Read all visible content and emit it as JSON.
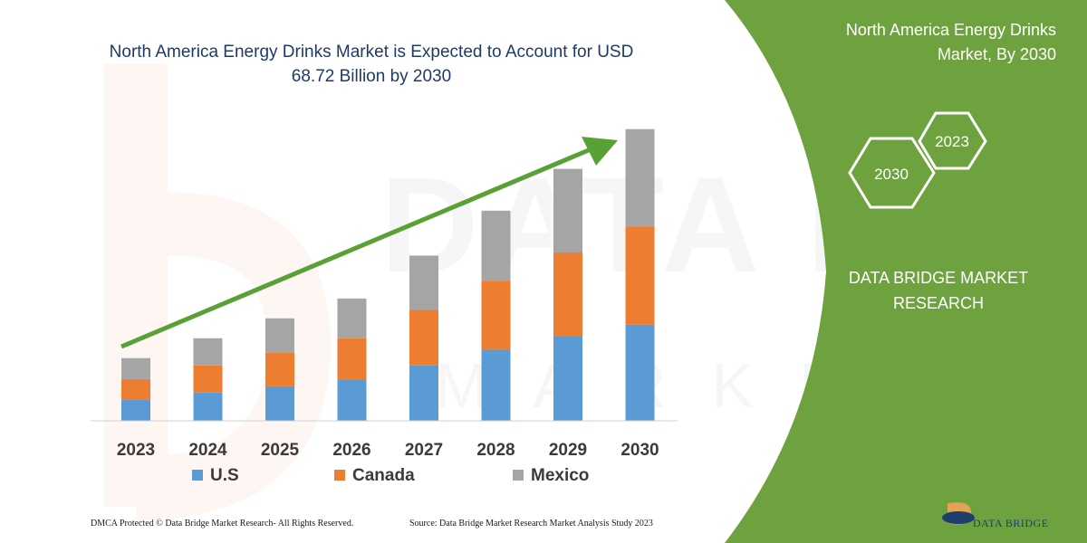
{
  "chart_data": {
    "type": "bar",
    "stacked": true,
    "title": "North America Energy Drinks Market is Expected to Account for USD 68.72 Billion by 2030",
    "categories": [
      "2023",
      "2024",
      "2025",
      "2026",
      "2027",
      "2028",
      "2029",
      "2030"
    ],
    "series": [
      {
        "name": "U.S",
        "color": "#5b9bd5",
        "values": [
          20,
          27,
          33,
          39,
          53,
          68,
          81,
          92
        ]
      },
      {
        "name": "Canada",
        "color": "#ed7d31",
        "values": [
          20,
          26,
          32,
          40,
          53,
          66,
          80,
          94
        ]
      },
      {
        "name": "Mexico",
        "color": "#a5a5a5",
        "values": [
          20,
          26,
          33,
          38,
          52,
          67,
          80,
          93
        ]
      }
    ],
    "ylim": [
      0,
      290
    ],
    "grid": false,
    "legend_position": "bottom",
    "trend_arrow": {
      "color": "#5aa135",
      "direction": "up-right"
    }
  },
  "panel": {
    "title": "North America Energy Drinks Market, By 2030",
    "hexagons": [
      "2030",
      "2023"
    ],
    "brand": "DATA BRIDGE MARKET RESEARCH",
    "accent_color": "#6ea23e"
  },
  "footer": {
    "dmca": "DMCA Protected © Data Bridge Market Research- All Rights Reserved.",
    "source": "Source: Data Bridge Market Research Market Analysis Study 2023"
  },
  "logo": {
    "text": "DATA BRIDGE"
  }
}
